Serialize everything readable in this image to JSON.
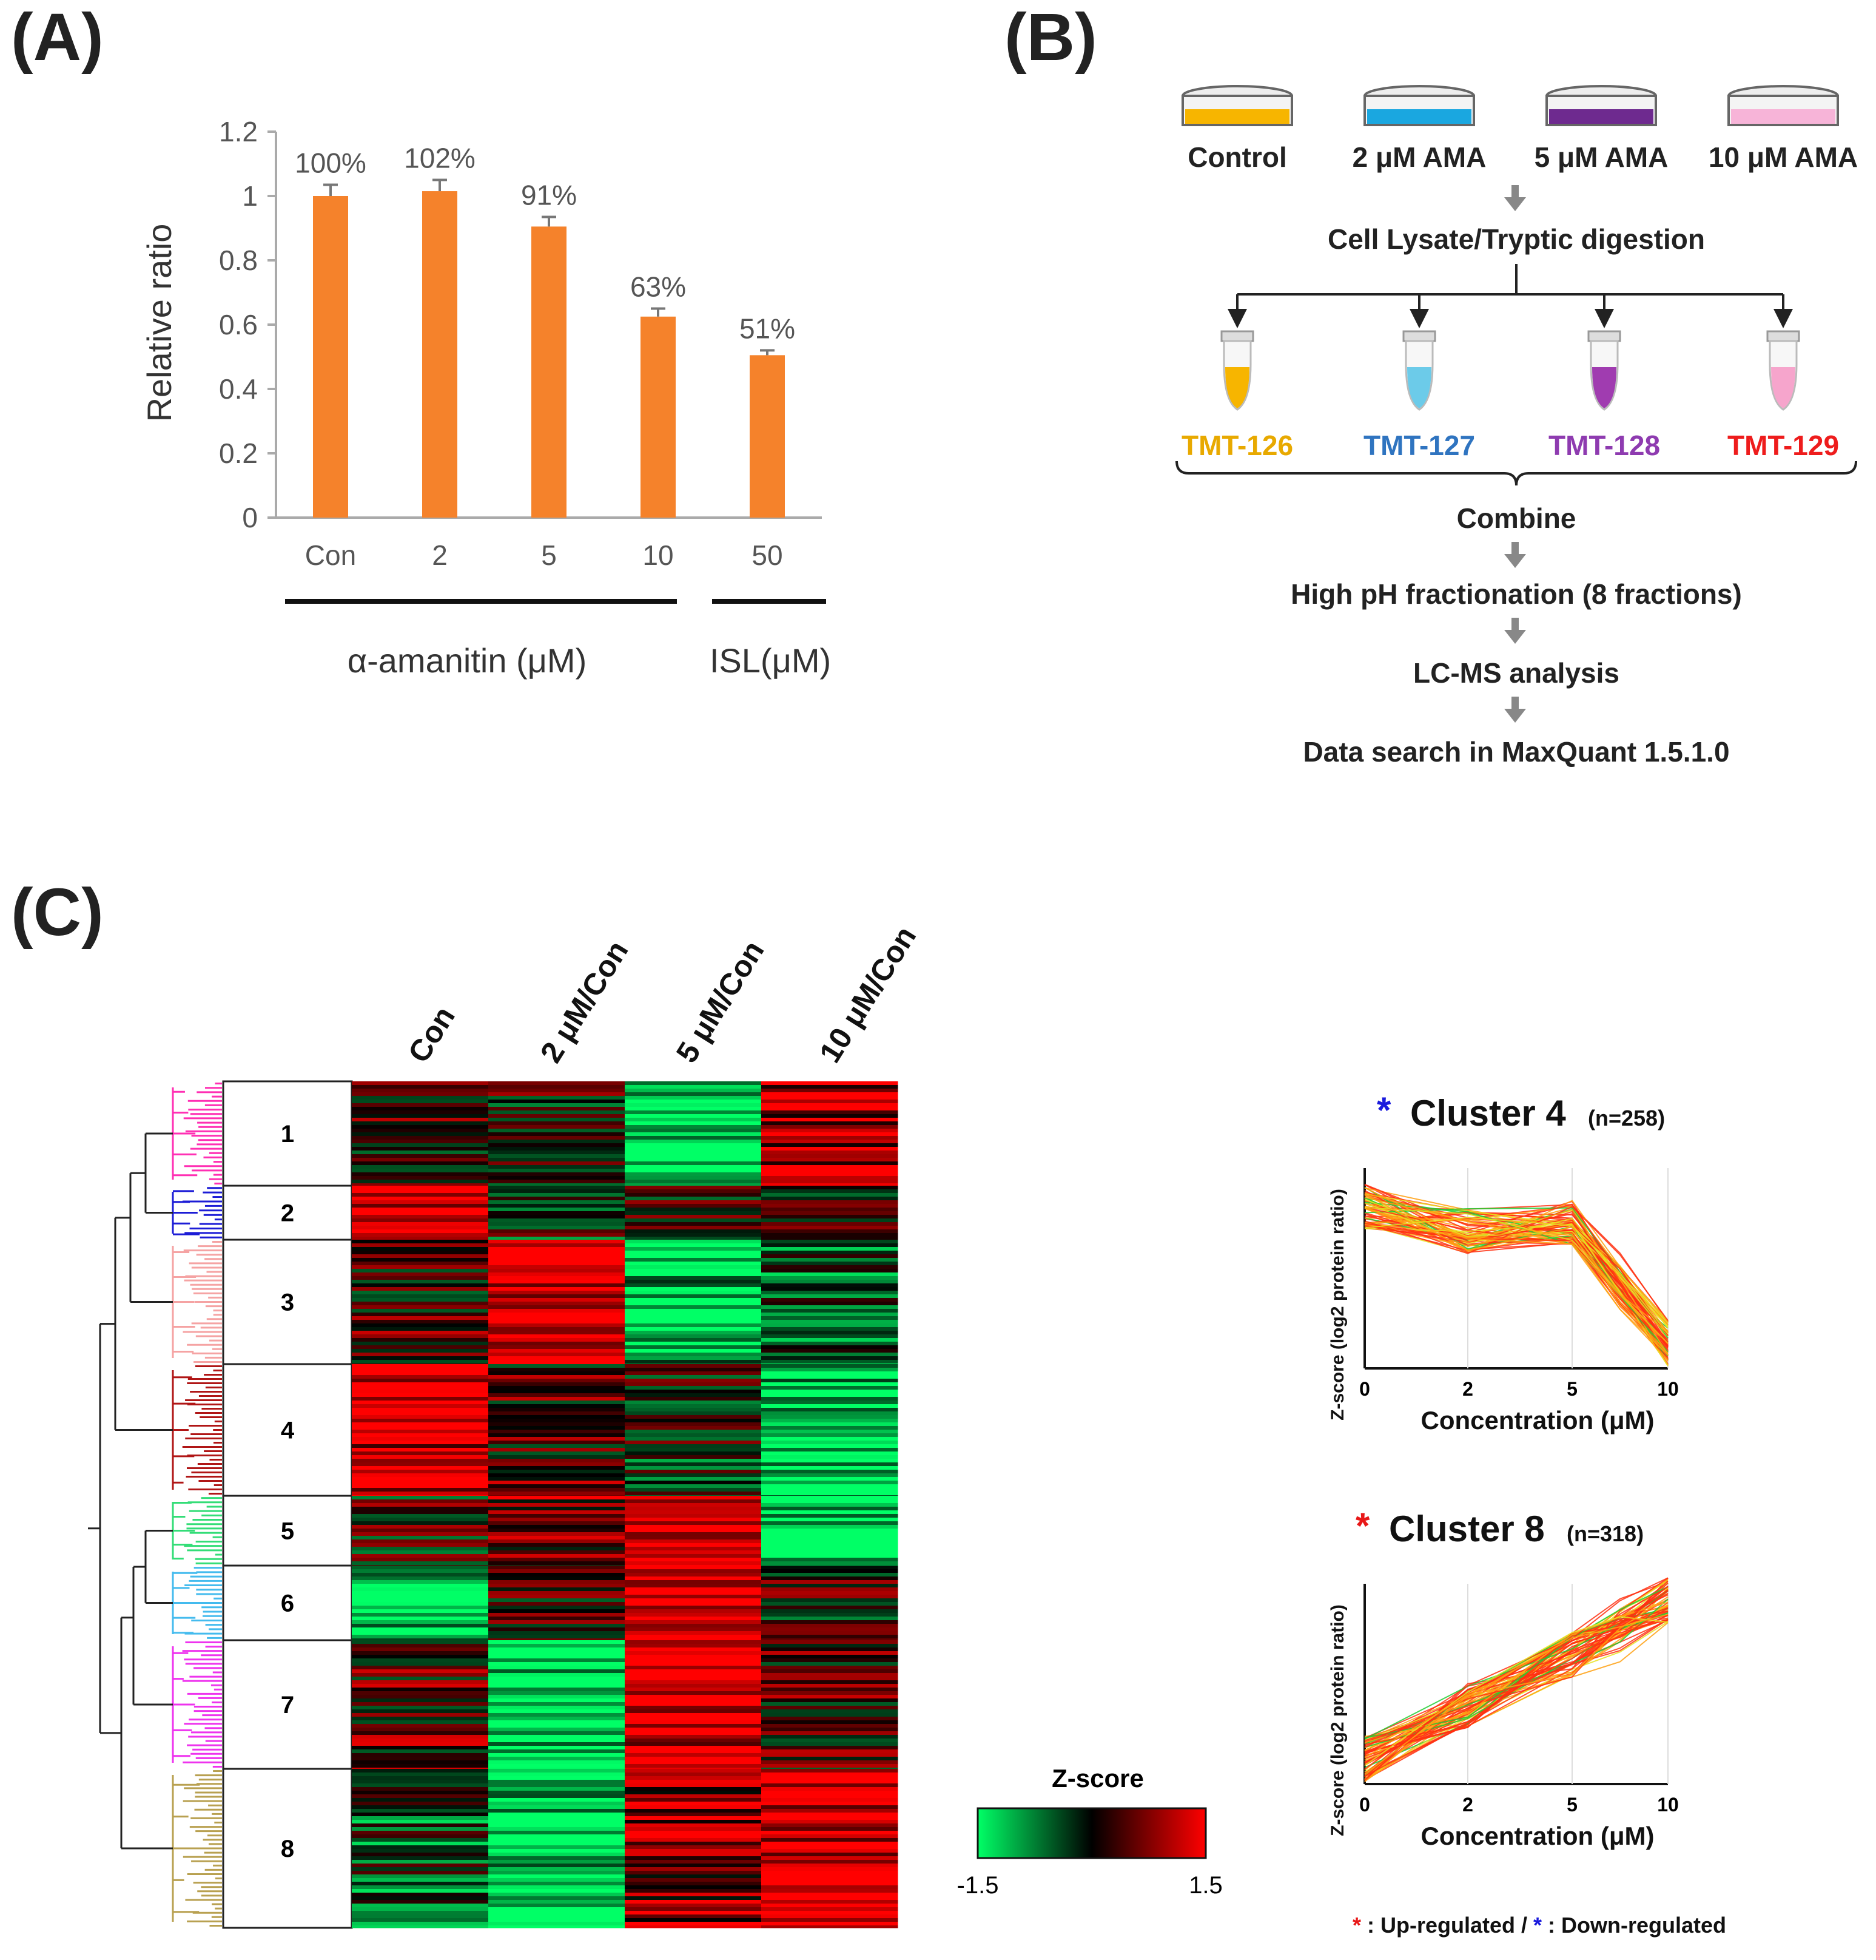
{
  "panels": {
    "a": "(A)",
    "b": "(B)",
    "c": "(C)"
  },
  "panel_a": {
    "chart_data": {
      "type": "bar",
      "categories": [
        "Con",
        "2",
        "5",
        "10",
        "50"
      ],
      "values": [
        1.0,
        1.015,
        0.905,
        0.625,
        0.505
      ],
      "errors": [
        0.035,
        0.035,
        0.03,
        0.025,
        0.015
      ],
      "data_labels": [
        "100%",
        "102%",
        "91%",
        "63%",
        "51%"
      ],
      "ylabel": "Relative ratio",
      "ylim": [
        0,
        1.2
      ],
      "yticks": [
        "0",
        "0.2",
        "0.4",
        "0.6",
        "0.8",
        "1",
        "1.2"
      ],
      "group_labels": [
        "α-amanitin (μM)",
        "ISL(μM)"
      ],
      "bar_color": "#f5822b"
    }
  },
  "panel_b": {
    "dishes": [
      {
        "label": "Control",
        "color": "#f7b500"
      },
      {
        "label": "2 μM AMA",
        "color": "#1aa7e0"
      },
      {
        "label": "5 μM AMA",
        "color": "#6e2a8f"
      },
      {
        "label": "10 μM AMA",
        "color": "#f7b4d8"
      }
    ],
    "steps": [
      "Cell Lysate/Tryptic digestion",
      "Combine",
      "High pH fractionation (8 fractions)",
      "LC-MS analysis",
      "Data search in MaxQuant 1.5.1.0"
    ],
    "tubes": [
      {
        "label": "TMT-126",
        "color": "#e8a900"
      },
      {
        "label": "TMT-127",
        "color": "#2f74c0"
      },
      {
        "label": "TMT-128",
        "color": "#8e3bb0"
      },
      {
        "label": "TMT-129",
        "color": "#ee1c1c"
      }
    ],
    "tube_fill_colors": [
      "#f7b500",
      "#6ccbe9",
      "#a03cb0",
      "#f6a5cc"
    ]
  },
  "panel_c": {
    "heatmap": {
      "columns": [
        "Con",
        "2 μM/Con",
        "5 μM/Con",
        "10 μM/Con"
      ],
      "clusters": [
        "1",
        "2",
        "3",
        "4",
        "5",
        "6",
        "7",
        "8"
      ],
      "cluster_colors": [
        "#ff2fb3",
        "#1c1cd6",
        "#f5a3a3",
        "#b01616",
        "#33dd77",
        "#44bbee",
        "#ee33ee",
        "#b8a050"
      ]
    },
    "legend": {
      "title": "Z-score",
      "min": "-1.5",
      "max": "1.5"
    },
    "profiles": [
      {
        "star": "*",
        "star_color": "#1a1add",
        "title": "Cluster 4",
        "n": "(n=258)",
        "ylabel": "Z-score (log2 protein ratio)",
        "xlabel": "Concentration (μM)",
        "xticks": [
          "0",
          "2",
          "5",
          "10"
        ]
      },
      {
        "star": "*",
        "star_color": "#e81818",
        "title": "Cluster 8",
        "n": "(n=318)",
        "ylabel": "Z-score (log2 protein ratio)",
        "xlabel": "Concentration (μM)",
        "xticks": [
          "0",
          "2",
          "5",
          "10"
        ]
      }
    ],
    "footnote": {
      "star1": "*",
      "text1": " : Up-regulated / ",
      "star2": "*",
      "text2": " : Down-regulated"
    }
  }
}
